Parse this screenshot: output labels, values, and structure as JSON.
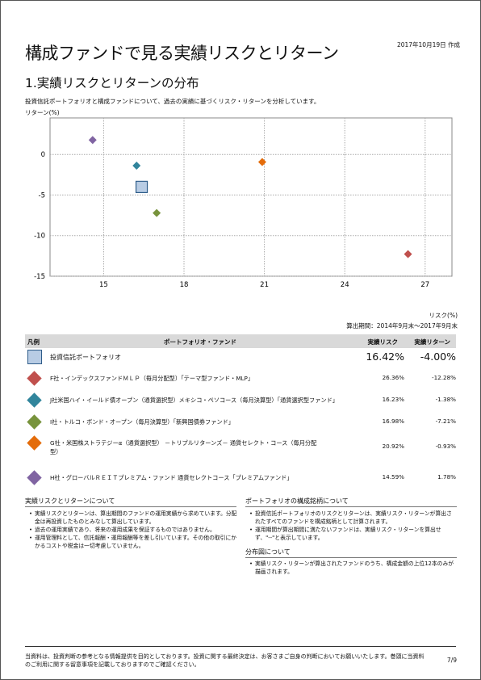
{
  "header": {
    "title": "構成ファンドで見る実績リスクとリターン",
    "date": "2017年10月19日 作成"
  },
  "section": {
    "heading": "1.実績リスクとリターンの分布",
    "description": "投資信託ポートフォリオと構成ファンドについて、過去の実績に基づくリスク・リターンを分析しています。"
  },
  "chart_data": {
    "type": "scatter",
    "xlabel": "リスク(%)",
    "ylabel": "リターン(%)",
    "xlim": [
      13,
      28
    ],
    "ylim": [
      -15,
      4.5
    ],
    "xticks": [
      15,
      18,
      21,
      24,
      27
    ],
    "yticks": [
      0,
      -5,
      -10,
      -15
    ],
    "grid": true,
    "points": [
      {
        "name": "投資信託ポートフォリオ",
        "x": 16.42,
        "y": -4.0,
        "color": "#b8cce4",
        "shape": "square"
      },
      {
        "name": "F社",
        "x": 26.36,
        "y": -12.28,
        "color": "#c0504d",
        "shape": "diamond"
      },
      {
        "name": "J社",
        "x": 16.23,
        "y": -1.38,
        "color": "#31859c",
        "shape": "diamond"
      },
      {
        "name": "I社",
        "x": 16.98,
        "y": -7.21,
        "color": "#77933c",
        "shape": "diamond"
      },
      {
        "name": "G社",
        "x": 20.92,
        "y": -0.93,
        "color": "#e46c0a",
        "shape": "diamond"
      },
      {
        "name": "H社",
        "x": 14.59,
        "y": 1.78,
        "color": "#8064a2",
        "shape": "diamond"
      }
    ]
  },
  "calc_period": "算出期間：2014年9月末～2017年9月末",
  "table": {
    "headers": {
      "legend": "凡例",
      "fund": "ポートフォリオ・ファンド",
      "risk": "実績リスク",
      "ret": "実績リターン"
    },
    "rows": [
      {
        "name": "投資信託ポートフォリオ",
        "risk": "16.42%",
        "ret": "-4.00%",
        "color": "#b8cce4",
        "shape": "square"
      },
      {
        "name": "F社・インデックスファンドＭＬＰ（毎月分配型）「テーマ型ファンド・MLP」",
        "risk": "26.36%",
        "ret": "-12.28%",
        "color": "#c0504d",
        "shape": "diamond"
      },
      {
        "name": "J社米国ハイ・イールド債オープン（通貨選択型）メキシコ・ペソコース（毎月決算型）「通貨選択型ファンド」",
        "risk": "16.23%",
        "ret": "-1.38%",
        "color": "#31859c",
        "shape": "diamond"
      },
      {
        "name": "I社・トルコ・ボンド・オープン（毎月決算型）「新興国債券ファンド」",
        "risk": "16.98%",
        "ret": "-7.21%",
        "color": "#77933c",
        "shape": "diamond"
      },
      {
        "name": "G社・米国株ストラテジーα（通貨選択型） －トリプルリターンズ－ 通貨セレクト・コース（毎月分配型）",
        "risk": "20.92%",
        "ret": "-0.93%",
        "color": "#e46c0a",
        "shape": "diamond"
      },
      {
        "name": "H社・グローバルＲＥＩＴプレミアム・ファンド 通貨セレクトコース「プレミアムファンド」",
        "risk": "14.59%",
        "ret": "1.78%",
        "color": "#8064a2",
        "shape": "diamond"
      }
    ]
  },
  "notes": {
    "left_heading": "実績リスクとリターンについて",
    "left_items": [
      "実績リスクとリターンは、算出期間のファンドの運用実績から求めています。分配金は再投資したものとみなして算出しています。",
      "過去の運用実績であり、将来の運用成果を保証するものではありません。",
      "運用管理料として、信託報酬・運用報酬等を差し引いています。その他の取引にかかるコストや税金は一切考慮していません。"
    ],
    "right_heading": "ポートフォリオの構成銘柄について",
    "right_items": [
      "投資信託ポートフォリオのリスクとリターンは、実績リスク・リターンが算出されたすべてのファンドを構成銘柄として計算されます。",
      "運用期間が算出期間に満たないファンドは、実績リスク・リターンを算出せず、\"--\"と表示しています。"
    ],
    "right_heading2": "分布図について",
    "right_items2": [
      "実績リスク・リターンが算出されたファンドのうち、構成金額の上位12本のみが描画されます。"
    ]
  },
  "footer": {
    "text": "当資料は、投資判断の参考となる情報提供を目的としております。投資に関する最終決定は、お客さまご自身の判断においてお願いいたします。巻頭に当資料のご利用に関する留意事項を記載しておりますのでご確認ください。",
    "page": "7/9"
  }
}
